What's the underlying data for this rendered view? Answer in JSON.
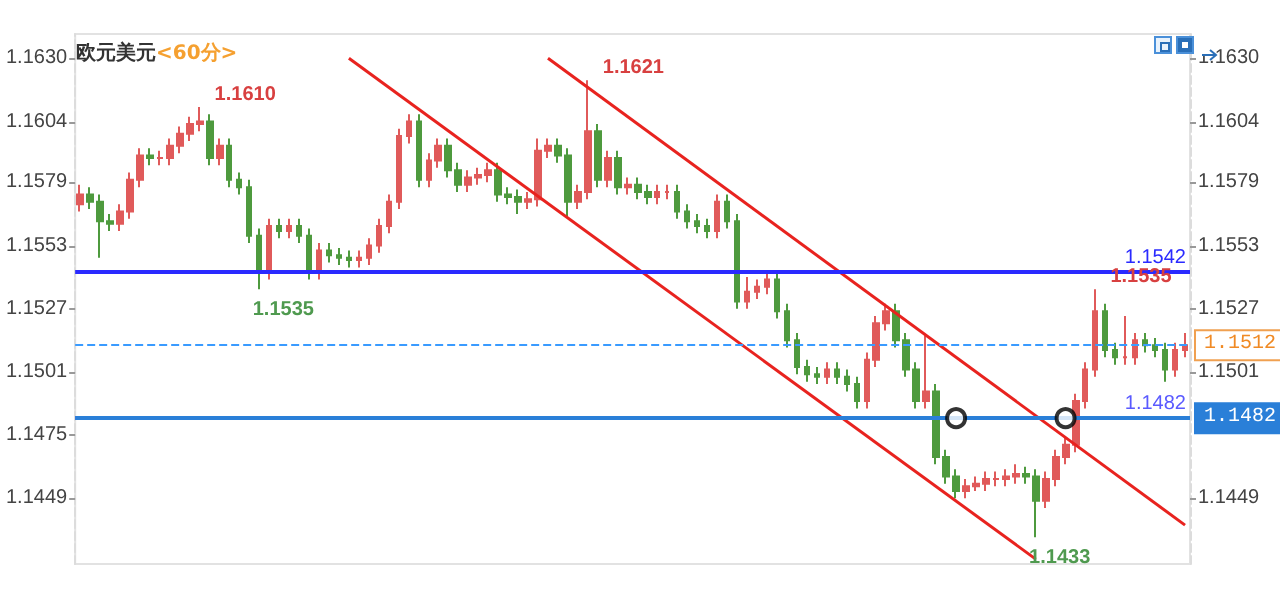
{
  "chart_data": {
    "type": "candlestick",
    "title": "欧元美元",
    "subtitle": "<60分>",
    "categories": [
      null,
      null,
      null,
      null,
      null,
      null,
      null,
      null,
      null,
      null,
      null,
      null,
      null,
      null,
      null,
      null,
      null,
      null,
      null,
      null,
      null,
      null,
      null,
      null,
      null,
      null,
      null,
      null,
      null,
      null,
      null,
      null,
      null,
      null,
      null,
      null,
      null,
      null,
      null,
      null,
      null,
      null,
      null,
      null,
      null,
      null,
      null,
      null,
      null,
      null,
      null,
      null,
      null,
      null,
      null,
      null,
      null,
      null,
      null,
      null,
      null,
      null,
      null,
      null,
      null,
      null,
      null,
      null,
      null,
      null,
      null,
      null,
      null,
      null,
      null,
      null,
      null,
      null,
      null,
      null,
      null,
      null,
      null,
      null,
      null,
      null,
      null,
      null,
      null,
      null,
      null,
      null,
      null,
      null,
      null,
      null,
      null,
      null,
      null,
      null,
      null,
      null,
      null,
      null,
      null,
      null,
      null,
      null,
      null,
      null,
      null,
      null
    ],
    "ylim": [
      1.1422,
      1.164
    ],
    "yticks": [
      {
        "value": 1.163,
        "label": "1.1630"
      },
      1.1604,
      1.1579,
      1.1553,
      1.1527,
      1.1501,
      1.1475,
      1.1449
    ],
    "y2lim": [
      1.1422,
      1.164
    ],
    "y2ticks": [
      {
        "value": 1.163,
        "label": "1.1630"
      },
      1.1604,
      1.1579,
      1.1553,
      1.1527,
      1.1501,
      1.1449
    ],
    "series": [
      {
        "colors": [
          "#e05a5a",
          "#4e9a3e",
          "#4e9a3e",
          "#4e9a3e",
          "#e05a5a",
          "#e05a5a",
          "#e05a5a",
          "#4e9a3e",
          "#e05a5a",
          "#e05a5a",
          "#e05a5a",
          "#e05a5a",
          "#e05a5a",
          "#4e9a3e",
          "#e05a5a",
          "#4e9a3e",
          "#4e9a3e",
          "#4e9a3e",
          "#4e9a3e",
          "#e05a5a",
          "#4e9a3e",
          "#e05a5a",
          "#4e9a3e",
          "#4e9a3e",
          "#e05a5a",
          "#4e9a3e",
          "#4e9a3e",
          "#4e9a3e",
          "#e05a5a",
          "#e05a5a",
          "#e05a5a",
          "#e05a5a",
          "#e05a5a",
          "#e05a5a",
          "#4e9a3e",
          "#e05a5a",
          "#e05a5a",
          "#4e9a3e",
          "#4e9a3e",
          "#e05a5a",
          "#e05a5a",
          "#e05a5a",
          "#4e9a3e",
          "#4e9a3e",
          "#4e9a3e",
          "#e05a5a",
          "#e05a5a",
          "#e05a5a",
          "#4e9a3e",
          "#4e9a3e",
          "#e05a5a",
          "#e05a5a",
          "#4e9a3e",
          "#e05a5a",
          "#4e9a3e",
          "#e05a5a",
          "#4e9a3e",
          "#4e9a3e",
          "#e05a5a",
          "#e05a5a",
          "#4e9a3e",
          "#4e9a3e",
          "#4e9a3e",
          "#4e9a3e",
          "#e05a5a",
          "#4e9a3e",
          "#4e9a3e",
          "#e05a5a",
          "#e05a5a",
          "#e05a5a",
          "#4e9a3e",
          "#4e9a3e",
          "#4e9a3e",
          "#4e9a3e",
          "#4e9a3e",
          "#e05a5a",
          "#4e9a3e",
          "#4e9a3e",
          "#4e9a3e",
          "#e05a5a",
          "#e05a5a",
          "#e05a5a",
          "#4e9a3e",
          "#4e9a3e",
          "#4e9a3e",
          "#e05a5a",
          "#4e9a3e",
          "#4e9a3e",
          "#4e9a3e",
          "#e05a5a",
          "#e05a5a",
          "#e05a5a",
          "#e05a5a",
          "#e05a5a",
          "#e05a5a",
          "#4e9a3e",
          "#4e9a3e",
          "#e05a5a",
          "#e05a5a",
          "#e05a5a",
          "#e05a5a",
          "#e05a5a",
          "#e05a5a",
          "#4e9a3e",
          "#4e9a3e",
          "#e05a5a",
          "#e05a5a",
          "#4e9a3e",
          "#4e9a3e",
          "#4e9a3e",
          "#e05a5a",
          "#e05a5a"
        ],
        "value_labels": [
          null,
          null,
          null,
          null,
          null,
          null,
          null,
          null,
          null,
          null,
          null,
          null,
          "1.1610",
          null,
          null,
          null,
          null,
          null,
          "1.1535",
          null,
          null,
          null,
          null,
          null,
          null,
          null,
          null,
          null,
          null,
          null,
          null,
          null,
          null,
          null,
          null,
          null,
          null,
          null,
          null,
          null,
          null,
          null,
          null,
          null,
          null,
          null,
          null,
          null,
          null,
          null,
          null,
          "1.1621",
          null,
          null,
          null,
          null,
          null,
          null,
          null,
          null,
          null,
          null,
          null,
          null,
          null,
          null,
          null,
          null,
          null,
          null,
          null,
          null,
          null,
          null,
          null,
          null,
          null,
          null,
          null,
          null,
          null,
          null,
          null,
          null,
          null,
          null,
          null,
          null,
          null,
          null,
          null,
          null,
          null,
          null,
          null,
          null,
          "1.1433",
          null,
          null,
          null,
          null,
          null,
          "1.1535",
          null,
          null,
          null,
          null,
          null,
          null,
          null,
          null,
          null
        ],
        "ohlc": [
          [
            1.157,
            1.1578,
            1.1567,
            1.1574
          ],
          [
            1.1574,
            1.1577,
            1.1568,
            1.1571
          ],
          [
            1.1571,
            1.1574,
            1.1548,
            1.1563
          ],
          [
            1.1563,
            1.1566,
            1.1559,
            1.1562
          ],
          [
            1.1562,
            1.157,
            1.1559,
            1.1567
          ],
          [
            1.1567,
            1.1583,
            1.1564,
            1.158
          ],
          [
            1.158,
            1.1593,
            1.1577,
            1.159
          ],
          [
            1.159,
            1.1593,
            1.1586,
            1.1589
          ],
          [
            1.1589,
            1.1592,
            1.1586,
            1.1589
          ],
          [
            1.1589,
            1.1597,
            1.1586,
            1.1594
          ],
          [
            1.1594,
            1.1602,
            1.1591,
            1.1599
          ],
          [
            1.1599,
            1.1606,
            1.1596,
            1.1603
          ],
          [
            1.1603,
            1.161,
            1.16,
            1.1604
          ],
          [
            1.1604,
            1.1607,
            1.1586,
            1.1589
          ],
          [
            1.1589,
            1.1597,
            1.1586,
            1.1594
          ],
          [
            1.1594,
            1.1597,
            1.1577,
            1.158
          ],
          [
            1.158,
            1.1583,
            1.1574,
            1.1577
          ],
          [
            1.1577,
            1.158,
            1.1554,
            1.1557
          ],
          [
            1.1557,
            1.156,
            1.1535,
            1.1542
          ],
          [
            1.1542,
            1.1564,
            1.1539,
            1.1561
          ],
          [
            1.1561,
            1.1564,
            1.1556,
            1.1559
          ],
          [
            1.1559,
            1.1564,
            1.1556,
            1.1561
          ],
          [
            1.1561,
            1.1564,
            1.1554,
            1.1557
          ],
          [
            1.1557,
            1.156,
            1.1539,
            1.1542
          ],
          [
            1.1542,
            1.1554,
            1.1539,
            1.1551
          ],
          [
            1.1551,
            1.1554,
            1.1546,
            1.1549
          ],
          [
            1.1549,
            1.1552,
            1.1545,
            1.1548
          ],
          [
            1.1548,
            1.1551,
            1.1544,
            1.1547
          ],
          [
            1.1547,
            1.1551,
            1.1544,
            1.1548
          ],
          [
            1.1548,
            1.1556,
            1.1545,
            1.1553
          ],
          [
            1.1553,
            1.1564,
            1.155,
            1.1561
          ],
          [
            1.1561,
            1.1574,
            1.1558,
            1.1571
          ],
          [
            1.1571,
            1.1601,
            1.1568,
            1.1598
          ],
          [
            1.1598,
            1.1607,
            1.1595,
            1.1604
          ],
          [
            1.1604,
            1.1607,
            1.1577,
            1.158
          ],
          [
            1.158,
            1.1591,
            1.1577,
            1.1588
          ],
          [
            1.1588,
            1.1597,
            1.1585,
            1.1594
          ],
          [
            1.1594,
            1.1597,
            1.1581,
            1.1584
          ],
          [
            1.1584,
            1.1587,
            1.1575,
            1.1578
          ],
          [
            1.1578,
            1.1584,
            1.1575,
            1.1581
          ],
          [
            1.1581,
            1.1585,
            1.1578,
            1.1582
          ],
          [
            1.1582,
            1.1587,
            1.1579,
            1.1584
          ],
          [
            1.1584,
            1.1587,
            1.1571,
            1.1574
          ],
          [
            1.1574,
            1.1577,
            1.157,
            1.1573
          ],
          [
            1.1573,
            1.1576,
            1.1566,
            1.1571
          ],
          [
            1.1571,
            1.1575,
            1.1568,
            1.1572
          ],
          [
            1.1572,
            1.1597,
            1.1569,
            1.1592
          ],
          [
            1.1592,
            1.1597,
            1.1589,
            1.1594
          ],
          [
            1.1594,
            1.1597,
            1.1587,
            1.159
          ],
          [
            1.159,
            1.1593,
            1.1565,
            1.1571
          ],
          [
            1.1571,
            1.1578,
            1.1568,
            1.1575
          ],
          [
            1.1575,
            1.1621,
            1.1572,
            1.16
          ],
          [
            1.16,
            1.1603,
            1.1577,
            1.158
          ],
          [
            1.158,
            1.1592,
            1.1577,
            1.1589
          ],
          [
            1.1589,
            1.1592,
            1.1574,
            1.1577
          ],
          [
            1.1577,
            1.1581,
            1.1574,
            1.1578
          ],
          [
            1.1578,
            1.1581,
            1.1572,
            1.1575
          ],
          [
            1.1575,
            1.1578,
            1.157,
            1.1573
          ],
          [
            1.1573,
            1.1578,
            1.157,
            1.1575
          ],
          [
            1.1575,
            1.1578,
            1.1572,
            1.1575
          ],
          [
            1.1575,
            1.1578,
            1.1564,
            1.1567
          ],
          [
            1.1567,
            1.157,
            1.156,
            1.1563
          ],
          [
            1.1563,
            1.1566,
            1.1558,
            1.1561
          ],
          [
            1.1561,
            1.1564,
            1.1556,
            1.1559
          ],
          [
            1.1559,
            1.1574,
            1.1556,
            1.1571
          ],
          [
            1.1571,
            1.1574,
            1.156,
            1.1563
          ],
          [
            1.1563,
            1.1566,
            1.1527,
            1.153
          ],
          [
            1.153,
            1.154,
            1.1527,
            1.1534
          ],
          [
            1.1534,
            1.1539,
            1.1531,
            1.1536
          ],
          [
            1.1536,
            1.1542,
            1.1533,
            1.1539
          ],
          [
            1.1539,
            1.1542,
            1.1523,
            1.1526
          ],
          [
            1.1526,
            1.1529,
            1.1511,
            1.1514
          ],
          [
            1.1514,
            1.1517,
            1.15,
            1.1503
          ],
          [
            1.1503,
            1.1506,
            1.1497,
            1.15
          ],
          [
            1.15,
            1.1503,
            1.1496,
            1.1499
          ],
          [
            1.1499,
            1.1505,
            1.1496,
            1.1502
          ],
          [
            1.1502,
            1.1505,
            1.1496,
            1.1499
          ],
          [
            1.1499,
            1.1502,
            1.1493,
            1.1496
          ],
          [
            1.1496,
            1.1499,
            1.1486,
            1.1489
          ],
          [
            1.1489,
            1.1509,
            1.1486,
            1.1506
          ],
          [
            1.1506,
            1.1524,
            1.1503,
            1.1521
          ],
          [
            1.1521,
            1.1529,
            1.1518,
            1.1526
          ],
          [
            1.1526,
            1.1529,
            1.1511,
            1.1514
          ],
          [
            1.1514,
            1.1517,
            1.1499,
            1.1502
          ],
          [
            1.1502,
            1.1505,
            1.1486,
            1.1489
          ],
          [
            1.1489,
            1.1516,
            1.1486,
            1.1493
          ],
          [
            1.1493,
            1.1496,
            1.1463,
            1.1466
          ],
          [
            1.1466,
            1.1469,
            1.1455,
            1.1458
          ],
          [
            1.1458,
            1.1461,
            1.1449,
            1.1452
          ],
          [
            1.1452,
            1.1457,
            1.1449,
            1.1454
          ],
          [
            1.1454,
            1.1458,
            1.1452,
            1.1455
          ],
          [
            1.1455,
            1.146,
            1.1452,
            1.1457
          ],
          [
            1.1457,
            1.146,
            1.1454,
            1.1457
          ],
          [
            1.1457,
            1.1461,
            1.1454,
            1.1458
          ],
          [
            1.1458,
            1.1463,
            1.1455,
            1.1459
          ],
          [
            1.1459,
            1.1462,
            1.1455,
            1.1458
          ],
          [
            1.1458,
            1.1461,
            1.1433,
            1.1448
          ],
          [
            1.1448,
            1.146,
            1.1445,
            1.1457
          ],
          [
            1.1457,
            1.1469,
            1.1454,
            1.1466
          ],
          [
            1.1466,
            1.1474,
            1.1463,
            1.1471
          ],
          [
            1.1471,
            1.1492,
            1.1468,
            1.1489
          ],
          [
            1.1489,
            1.1505,
            1.1486,
            1.1502
          ],
          [
            1.1502,
            1.1535,
            1.1499,
            1.1526
          ],
          [
            1.1526,
            1.1529,
            1.1507,
            1.151
          ],
          [
            1.151,
            1.1513,
            1.1504,
            1.1507
          ],
          [
            1.1507,
            1.1524,
            1.1504,
            1.1507
          ],
          [
            1.1507,
            1.1517,
            1.1504,
            1.1514
          ],
          [
            1.1514,
            1.1517,
            1.1509,
            1.1512
          ],
          [
            1.1512,
            1.1515,
            1.1507,
            1.151
          ],
          [
            1.151,
            1.1513,
            1.1497,
            1.1502
          ],
          [
            1.1502,
            1.1513,
            1.1499,
            1.151
          ],
          [
            1.151,
            1.1517,
            1.1507,
            1.1512
          ]
        ]
      },
      {
        "type": "line",
        "color": "#e8231f",
        "values": [
          null,
          null,
          null,
          null,
          null,
          null,
          null,
          null,
          null,
          null,
          null,
          null,
          null,
          null,
          null,
          null,
          null,
          null,
          null,
          null,
          null,
          null,
          null,
          null,
          null,
          null,
          null,
          1.163,
          null,
          null,
          null,
          null,
          null,
          null,
          null,
          null,
          null,
          null,
          null,
          null,
          null,
          null,
          null,
          null,
          null,
          null,
          null,
          null,
          null,
          null,
          null,
          null,
          null,
          null,
          null,
          null,
          null,
          null,
          null,
          null,
          null,
          null,
          null,
          null,
          null,
          null,
          null,
          null,
          null,
          null,
          null,
          null,
          null,
          null,
          null,
          null,
          null,
          null,
          null,
          null,
          null,
          null,
          null,
          null,
          null,
          null,
          null,
          null,
          null,
          null,
          null,
          null,
          null,
          null,
          null,
          null,
          1.1424,
          null,
          null,
          null,
          null,
          null,
          null,
          null,
          null,
          null,
          null,
          null,
          null,
          null,
          null,
          null
        ]
      },
      {
        "type": "line",
        "color": "#e8231f",
        "values": [
          null,
          null,
          null,
          null,
          null,
          null,
          null,
          null,
          null,
          null,
          null,
          null,
          null,
          null,
          null,
          null,
          null,
          null,
          null,
          null,
          null,
          null,
          null,
          null,
          null,
          null,
          null,
          null,
          null,
          null,
          null,
          null,
          null,
          null,
          null,
          null,
          null,
          null,
          null,
          null,
          null,
          null,
          null,
          null,
          null,
          null,
          null,
          1.163,
          null,
          null,
          null,
          null,
          null,
          null,
          null,
          null,
          null,
          null,
          null,
          null,
          null,
          null,
          null,
          null,
          null,
          null,
          null,
          null,
          null,
          null,
          null,
          null,
          null,
          null,
          null,
          null,
          null,
          null,
          null,
          null,
          null,
          null,
          null,
          null,
          null,
          null,
          null,
          null,
          null,
          null,
          null,
          null,
          null,
          null,
          null,
          null,
          null,
          null,
          null,
          null,
          null,
          null,
          null,
          null,
          null,
          null,
          null,
          null,
          null,
          null,
          null,
          1.1438
        ]
      },
      {
        "type": "scatter",
        "color": "#000000",
        "marker": "circle",
        "values": [
          null,
          null,
          null,
          null,
          null,
          null,
          null,
          null,
          null,
          null,
          null,
          null,
          null,
          null,
          null,
          null,
          null,
          null,
          null,
          null,
          null,
          null,
          null,
          null,
          null,
          null,
          null,
          null,
          null,
          null,
          null,
          null,
          null,
          null,
          null,
          null,
          null,
          null,
          null,
          null,
          null,
          null,
          null,
          null,
          null,
          null,
          null,
          null,
          null,
          null,
          null,
          null,
          null,
          null,
          null,
          null,
          null,
          null,
          null,
          null,
          null,
          null,
          null,
          null,
          null,
          null,
          null,
          null,
          null,
          null,
          null,
          null,
          null,
          null,
          null,
          null,
          null,
          null,
          null,
          null,
          null,
          null,
          null,
          null,
          null,
          null,
          null,
          null,
          1.1482,
          null,
          null,
          null,
          null,
          null,
          null,
          null,
          null,
          null,
          null,
          1.1482,
          null,
          null,
          null,
          null,
          null,
          null,
          null,
          null,
          null,
          null,
          null,
          null
        ]
      }
    ],
    "ref_lines": [
      {
        "axis": "y",
        "value": 1.1542,
        "label": "1.1542",
        "color": "#2a2aff",
        "line_style": "solid"
      },
      {
        "axis": "y",
        "value": 1.1482,
        "label": "1.1482",
        "color": "#5a5aff",
        "line_style": "solid"
      },
      {
        "axis": "y2",
        "value": 1.1512,
        "label": "1.1512",
        "color": "#3a9bff",
        "line_style": "dashed"
      },
      {
        "axis": "y2",
        "value": 1.1482,
        "label": "1.1482",
        "color": "#2a7fd8",
        "line_style": "solid"
      }
    ],
    "grid": false
  }
}
